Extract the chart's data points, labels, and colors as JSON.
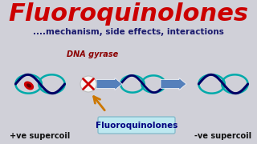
{
  "bg_color": "#d0d0d8",
  "title": "Fluoroquinolones",
  "title_color": "#cc0000",
  "subtitle": "....mechanism, side effects, interactions",
  "subtitle_color": "#1a1a6e",
  "dna_gyrase_label": "DNA gyrase",
  "dna_gyrase_color": "#8B0000",
  "label_left": "+ve supercoil",
  "label_right": "-ve supercoil",
  "label_color": "#111111",
  "fq_box_text": "Fluoroquinolones",
  "fq_box_bg": "#bde8f0",
  "fq_box_color": "#000080",
  "coil_outer": "#00aaaa",
  "coil_inner": "#000066",
  "arrow_color": "#5580bb",
  "inhibit_color": "#cc0000",
  "arrow_orange": "#cc7700",
  "inhibit_bg": "#f5f5f5",
  "inhibit_border": "#bbbbbb"
}
